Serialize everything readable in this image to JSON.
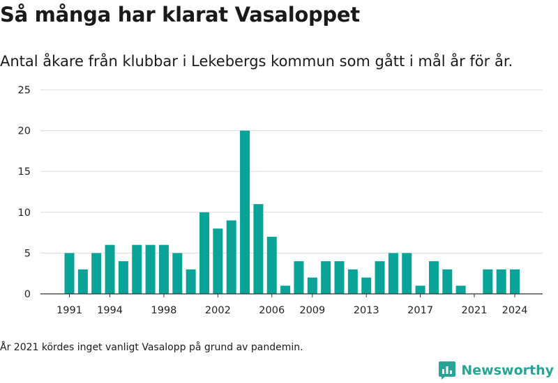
{
  "title": "Så många har klarat Vasaloppet",
  "subtitle": "Antal åkare från klubbar i Lekebergs kommun som gått i mål år för år.",
  "note": "År 2021 kördes inget vanligt Vasalopp på grund av pandemin.",
  "brand": {
    "name": "Newsworthy",
    "color": "#28a396",
    "icon": "newsworthy-logo-icon"
  },
  "colors": {
    "bar": "#0aa398",
    "grid": "#dcdcdc",
    "axis": "#333333"
  },
  "chart_data": {
    "type": "bar",
    "categories": [
      "1991",
      "1992",
      "1993",
      "1994",
      "1995",
      "1996",
      "1997",
      "1998",
      "1999",
      "2000",
      "2001",
      "2002",
      "2003",
      "2004",
      "2005",
      "2006",
      "2007",
      "2008",
      "2009",
      "2010",
      "2011",
      "2012",
      "2013",
      "2014",
      "2015",
      "2016",
      "2017",
      "2018",
      "2019",
      "2020",
      "2021",
      "2022",
      "2023",
      "2024"
    ],
    "values": [
      5,
      3,
      5,
      6,
      4,
      6,
      6,
      6,
      5,
      3,
      10,
      8,
      9,
      20,
      11,
      7,
      1,
      4,
      2,
      4,
      4,
      3,
      2,
      4,
      5,
      5,
      1,
      4,
      3,
      1,
      0,
      3,
      3,
      3
    ],
    "x_tick_labels": [
      "1991",
      "1994",
      "1998",
      "2002",
      "2006",
      "2009",
      "2013",
      "2017",
      "2021",
      "2024"
    ],
    "y_ticks": [
      0,
      5,
      10,
      15,
      20,
      25
    ],
    "ylim": [
      0,
      25
    ],
    "grid": true,
    "legend": "none",
    "title": "Så många har klarat Vasaloppet",
    "xlabel": "",
    "ylabel": ""
  }
}
